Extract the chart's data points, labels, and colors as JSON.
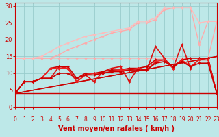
{
  "xlabel": "Vent moyen/en rafales ( km/h )",
  "xlim": [
    0,
    23
  ],
  "ylim": [
    0,
    31
  ],
  "yticks": [
    0,
    5,
    10,
    15,
    20,
    25,
    30
  ],
  "xticks": [
    0,
    1,
    2,
    3,
    4,
    5,
    6,
    7,
    8,
    9,
    10,
    11,
    12,
    13,
    14,
    15,
    16,
    17,
    18,
    19,
    20,
    21,
    22,
    23
  ],
  "bg_color": "#bde8e8",
  "grid_color": "#99cccc",
  "lines": [
    {
      "x": [
        0,
        1,
        2,
        3,
        4,
        5,
        6,
        7,
        8,
        9,
        10,
        11,
        12,
        13,
        14,
        15,
        16,
        17,
        18,
        19,
        20,
        21,
        22,
        23
      ],
      "y": [
        14.5,
        14.5,
        14.5,
        14.5,
        14.5,
        14.5,
        14.5,
        14.5,
        14.5,
        14.5,
        14.5,
        14.5,
        14.5,
        14.5,
        14.5,
        14.5,
        14.5,
        14.5,
        14.5,
        14.5,
        14.5,
        14.5,
        14.5,
        25.5
      ],
      "color": "#ffaaaa",
      "lw": 1.0,
      "marker": "D",
      "ms": 1.8
    },
    {
      "x": [
        0,
        1,
        2,
        3,
        4,
        5,
        6,
        7,
        8,
        9,
        10,
        11,
        12,
        13,
        14,
        15,
        16,
        17,
        18,
        19,
        20,
        21,
        22,
        23
      ],
      "y": [
        14.5,
        14.5,
        14.5,
        14.5,
        14.5,
        15.5,
        17,
        18,
        19,
        20,
        21,
        22,
        22.5,
        23,
        25,
        25,
        26,
        29,
        29.5,
        29.5,
        29.5,
        18.5,
        25.5,
        25.5
      ],
      "color": "#ffaaaa",
      "lw": 1.0,
      "marker": "D",
      "ms": 1.8
    },
    {
      "x": [
        0,
        1,
        2,
        3,
        4,
        5,
        6,
        7,
        8,
        9,
        10,
        11,
        12,
        13,
        14,
        15,
        16,
        17,
        18,
        19,
        20,
        21,
        22,
        23
      ],
      "y": [
        14.5,
        14.5,
        14.5,
        15,
        16.5,
        18,
        19,
        20,
        21,
        21.5,
        22,
        22.5,
        23,
        23.5,
        25.5,
        25.5,
        26.5,
        29.5,
        29.5,
        29.5,
        29.5,
        25,
        25.5,
        25.5
      ],
      "color": "#ffbbbb",
      "lw": 1.0,
      "marker": "D",
      "ms": 1.8
    },
    {
      "x": [
        0,
        23
      ],
      "y": [
        4.0,
        4.0
      ],
      "color": "#cc0000",
      "lw": 1.0,
      "marker": null,
      "ms": 0
    },
    {
      "x": [
        0,
        23
      ],
      "y": [
        4.0,
        15.0
      ],
      "color": "#cc0000",
      "lw": 1.0,
      "marker": null,
      "ms": 0
    },
    {
      "x": [
        0,
        23
      ],
      "y": [
        4.0,
        15.0
      ],
      "color": "#cc0000",
      "lw": 1.0,
      "marker": null,
      "ms": 0
    },
    {
      "x": [
        0,
        1,
        2,
        3,
        4,
        5,
        6,
        7,
        8,
        9,
        10,
        11,
        12,
        13,
        14,
        15,
        16,
        17,
        18,
        19,
        20,
        21,
        22,
        23
      ],
      "y": [
        4.0,
        7.5,
        7.5,
        8.5,
        8.5,
        12,
        11.5,
        7.5,
        9.5,
        7.5,
        10.5,
        11.5,
        12,
        7.5,
        11.5,
        11,
        18,
        14.5,
        11.5,
        18.5,
        11.5,
        14.5,
        14.5,
        4.0
      ],
      "color": "#dd1111",
      "lw": 1.2,
      "marker": "D",
      "ms": 2.0
    },
    {
      "x": [
        0,
        1,
        2,
        3,
        4,
        5,
        6,
        7,
        8,
        9,
        10,
        11,
        12,
        13,
        14,
        15,
        16,
        17,
        18,
        19,
        20,
        21,
        22,
        23
      ],
      "y": [
        4.0,
        7.5,
        7.5,
        8.5,
        11.5,
        12,
        12,
        8.5,
        10,
        10,
        10.5,
        11,
        11,
        11.5,
        11.5,
        12,
        14,
        14,
        12,
        14,
        14.5,
        14.5,
        14.5,
        4.0
      ],
      "color": "#cc0000",
      "lw": 1.2,
      "marker": "D",
      "ms": 2.0
    },
    {
      "x": [
        0,
        1,
        2,
        3,
        4,
        5,
        6,
        7,
        8,
        9,
        10,
        11,
        12,
        13,
        14,
        15,
        16,
        17,
        18,
        19,
        20,
        21,
        22,
        23
      ],
      "y": [
        4.0,
        7.5,
        7.5,
        8.5,
        11.5,
        11.5,
        11.5,
        7.5,
        9.5,
        10,
        10,
        10.5,
        11,
        11,
        11.5,
        11,
        13.5,
        14,
        11.5,
        14,
        12,
        14,
        14,
        4.0
      ],
      "color": "#ee2222",
      "lw": 1.2,
      "marker": "D",
      "ms": 2.0
    },
    {
      "x": [
        0,
        1,
        2,
        3,
        4,
        5,
        6,
        7,
        8,
        9,
        10,
        11,
        12,
        13,
        14,
        15,
        16,
        17,
        18,
        19,
        20,
        21,
        22,
        23
      ],
      "y": [
        4.0,
        7.5,
        7.5,
        8.5,
        8.5,
        10,
        10,
        8.5,
        9.5,
        9.5,
        10,
        10.5,
        10.5,
        11,
        11,
        11,
        13,
        13.5,
        12,
        13.5,
        12,
        13,
        13,
        4.0
      ],
      "color": "#cc0000",
      "lw": 1.2,
      "marker": "D",
      "ms": 2.0
    }
  ],
  "arrow_color": "#cc0000",
  "xlabel_color": "#cc0000",
  "xlabel_fontsize": 7,
  "tick_color": "#cc0000",
  "tick_fontsize": 5.5,
  "ytick_fontsize": 6
}
